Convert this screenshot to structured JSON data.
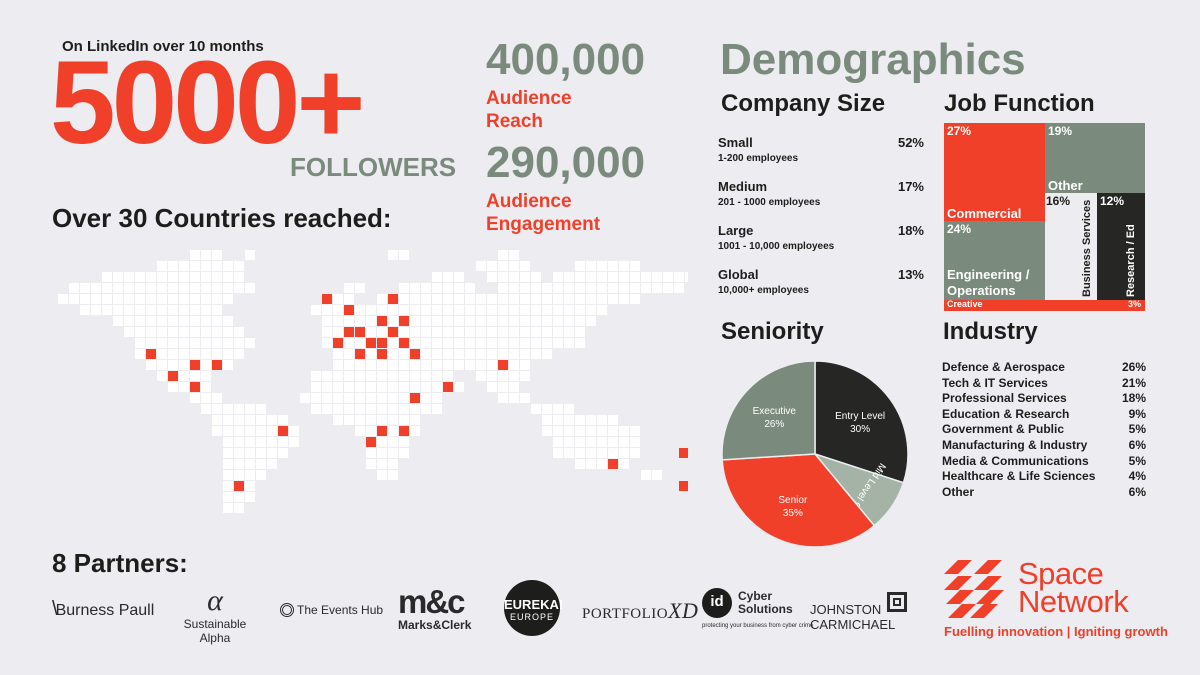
{
  "followers": {
    "caption": "On LinkedIn over 10 months",
    "number": "5000+",
    "label": "FOLLOWERS"
  },
  "countries_title": "Over 30 Countries reached:",
  "stats": [
    {
      "value": "400,000",
      "line1": "Audience",
      "line2": "Reach"
    },
    {
      "value": "290,000",
      "line1": "Audience",
      "line2": "Engagement"
    }
  ],
  "demographics": {
    "title": "Demographics",
    "company_size": {
      "title": "Company Size",
      "rows": [
        {
          "name": "Small",
          "sub": "1-200 employees",
          "pct": "52%"
        },
        {
          "name": "Medium",
          "sub": "201 - 1000 employees",
          "pct": "17%"
        },
        {
          "name": "Large",
          "sub": "1001 - 10,000 employees",
          "pct": "18%"
        },
        {
          "name": "Global",
          "sub": "10,000+ employees",
          "pct": "13%"
        }
      ]
    },
    "job_function": {
      "title": "Job Function",
      "tiles": [
        {
          "name": "Commercial",
          "pct": "27%"
        },
        {
          "name": "Other",
          "pct": "19%"
        },
        {
          "name": "Engineering / Operations",
          "line1": "Engineering /",
          "line2": "Operations",
          "pct": "24%"
        },
        {
          "name": "Business Services",
          "pct": "16%"
        },
        {
          "name": "Research / Ed",
          "pct": "12%"
        },
        {
          "name": "Creative",
          "pct": "3%"
        }
      ]
    },
    "seniority": {
      "title": "Seniority",
      "slices": [
        {
          "name": "Entry Level",
          "pct": "30%",
          "value": 30,
          "color": "#262624"
        },
        {
          "name": "Mid Level",
          "pct": "9%",
          "value": 9,
          "color": "#a4b3a6"
        },
        {
          "name": "Senior",
          "pct": "35%",
          "value": 35,
          "color": "#f0402a"
        },
        {
          "name": "Executive",
          "pct": "26%",
          "value": 26,
          "color": "#7a8a7c"
        }
      ]
    },
    "industry": {
      "title": "Industry",
      "rows": [
        {
          "name": "Defence & Aerospace",
          "pct": "26%"
        },
        {
          "name": "Tech & IT Services",
          "pct": "21%"
        },
        {
          "name": "Professional Services",
          "pct": "18%"
        },
        {
          "name": "Education & Research",
          "pct": "9%"
        },
        {
          "name": "Government & Public",
          "pct": "5%"
        },
        {
          "name": "Manufacturing & Industry",
          "pct": "6%"
        },
        {
          "name": "Media & Communications",
          "pct": "5%"
        },
        {
          "name": "Healthcare & Life Sciences",
          "pct": "4%"
        },
        {
          "name": "Other",
          "pct": "6%"
        }
      ]
    }
  },
  "partners": {
    "title": "8 Partners:",
    "logos": [
      {
        "name": "Burness Paull"
      },
      {
        "name": "Sustainable Alpha"
      },
      {
        "name": "The Events Hub"
      },
      {
        "name": "m&c",
        "sub": "Marks&Clerk"
      },
      {
        "name": "EUREKA!",
        "sub": "EUROPE"
      },
      {
        "name": "PORTFOLIO",
        "sub": "XD"
      },
      {
        "name": "Cyber Solutions",
        "badge": "id",
        "sub": "protecting your business from cyber crime"
      },
      {
        "name": "JOHNSTON",
        "sub": "CARMICHAEL"
      }
    ]
  },
  "brand": {
    "line1": "Space",
    "line2": "Network",
    "tagline": "Fuelling innovation | Igniting growth"
  },
  "colors": {
    "accent": "#f0402a",
    "sage": "#7a8a7c",
    "dark": "#262624",
    "background": "#edecf1"
  }
}
